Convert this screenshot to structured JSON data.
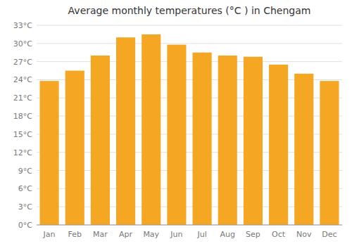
{
  "chart_data": {
    "type": "bar",
    "title": "Average monthly temperatures (°C ) in Chengam",
    "categories": [
      "Jan",
      "Feb",
      "Mar",
      "Apr",
      "May",
      "Jun",
      "Jul",
      "Aug",
      "Sep",
      "Oct",
      "Nov",
      "Dec"
    ],
    "values": [
      23.8,
      25.5,
      28.0,
      31.0,
      31.5,
      29.8,
      28.5,
      28.0,
      27.8,
      26.5,
      25.0,
      23.8
    ],
    "color": "#F5A623",
    "ylim": [
      0,
      33
    ],
    "yticks": [
      {
        "value": 0,
        "label": "0°C"
      },
      {
        "value": 3,
        "label": "3°C"
      },
      {
        "value": 6,
        "label": "6°C"
      },
      {
        "value": 9,
        "label": "9°C"
      },
      {
        "value": 12,
        "label": "12°C"
      },
      {
        "value": 15,
        "label": "15°C"
      },
      {
        "value": 18,
        "label": "18°C"
      },
      {
        "value": 21,
        "label": "21°C"
      },
      {
        "value": 24,
        "label": "24°C"
      },
      {
        "value": 27,
        "label": "27°C"
      },
      {
        "value": 30,
        "label": "30°C"
      },
      {
        "value": 33,
        "label": "33°C"
      }
    ],
    "grid": true
  }
}
